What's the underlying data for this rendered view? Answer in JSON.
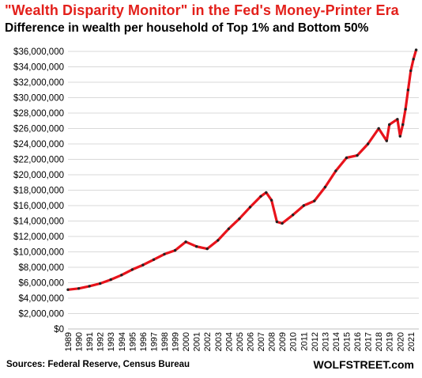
{
  "header": {
    "title": "\"Wealth Disparity Monitor\"  in the Fed's Money-Printer Era",
    "subtitle": "Difference in wealth per household of Top 1% and Bottom 50%"
  },
  "footer": {
    "source": "Sources: Federal Reserve, Census Bureau",
    "brand": "WOLFSTREET.com"
  },
  "colors": {
    "line": "#e8131b",
    "marker": "#222222",
    "grid": "#d9d9d9"
  },
  "chart_data": {
    "type": "line",
    "title": "\"Wealth Disparity Monitor\"  in the Fed's Money-Printer Era",
    "subtitle": "Difference in wealth per household of Top 1% and Bottom 50%",
    "xlabel": "",
    "ylabel": "",
    "ylim": [
      0,
      36000000
    ],
    "xlim": [
      1989.0,
      2021.75
    ],
    "grid": true,
    "legend": "none",
    "y_ticks": [
      "$0",
      "$2,000,000",
      "$4,000,000",
      "$6,000,000",
      "$8,000,000",
      "$10,000,000",
      "$12,000,000",
      "$14,000,000",
      "$16,000,000",
      "$18,000,000",
      "$20,000,000",
      "$22,000,000",
      "$24,000,000",
      "$26,000,000",
      "$28,000,000",
      "$30,000,000",
      "$32,000,000",
      "$34,000,000",
      "$36,000,000"
    ],
    "x_ticks": [
      "1989",
      "1990",
      "1991",
      "1992",
      "1993",
      "1994",
      "1995",
      "1996",
      "1997",
      "1998",
      "1999",
      "2000",
      "2001",
      "2002",
      "2003",
      "2004",
      "2005",
      "2006",
      "2007",
      "2008",
      "2009",
      "2010",
      "2011",
      "2012",
      "2013",
      "2014",
      "2015",
      "2016",
      "2017",
      "2018",
      "2019",
      "2020",
      "2021"
    ],
    "x": [
      "1989",
      "1990",
      "1991",
      "1992",
      "1993",
      "1994",
      "1995",
      "1996",
      "1997",
      "1998",
      "1999",
      "2000",
      "2001",
      "2002",
      "2003",
      "2004",
      "2005",
      "2006",
      "2007",
      "2007.5",
      "2008",
      "2008.5",
      "2009",
      "2010",
      "2011",
      "2012",
      "2013",
      "2014",
      "2015",
      "2016",
      "2017",
      "2018",
      "2018.75",
      "2019",
      "2019.75",
      "2020",
      "2020.25",
      "2020.5",
      "2020.75",
      "2021",
      "2021.25",
      "2021.5"
    ],
    "series": [
      {
        "values": [
          5100000,
          5250000,
          5550000,
          5900000,
          6400000,
          7000000,
          7700000,
          8300000,
          9000000,
          9700000,
          10200000,
          11300000,
          10700000,
          10400000,
          11500000,
          13000000,
          14300000,
          15800000,
          17200000,
          17700000,
          16700000,
          13900000,
          13700000,
          14800000,
          16000000,
          16600000,
          18400000,
          20500000,
          22200000,
          22500000,
          24000000,
          26000000,
          24400000,
          26500000,
          27200000,
          25000000,
          26500000,
          28500000,
          31000000,
          33500000,
          35000000,
          36200000
        ]
      }
    ]
  }
}
